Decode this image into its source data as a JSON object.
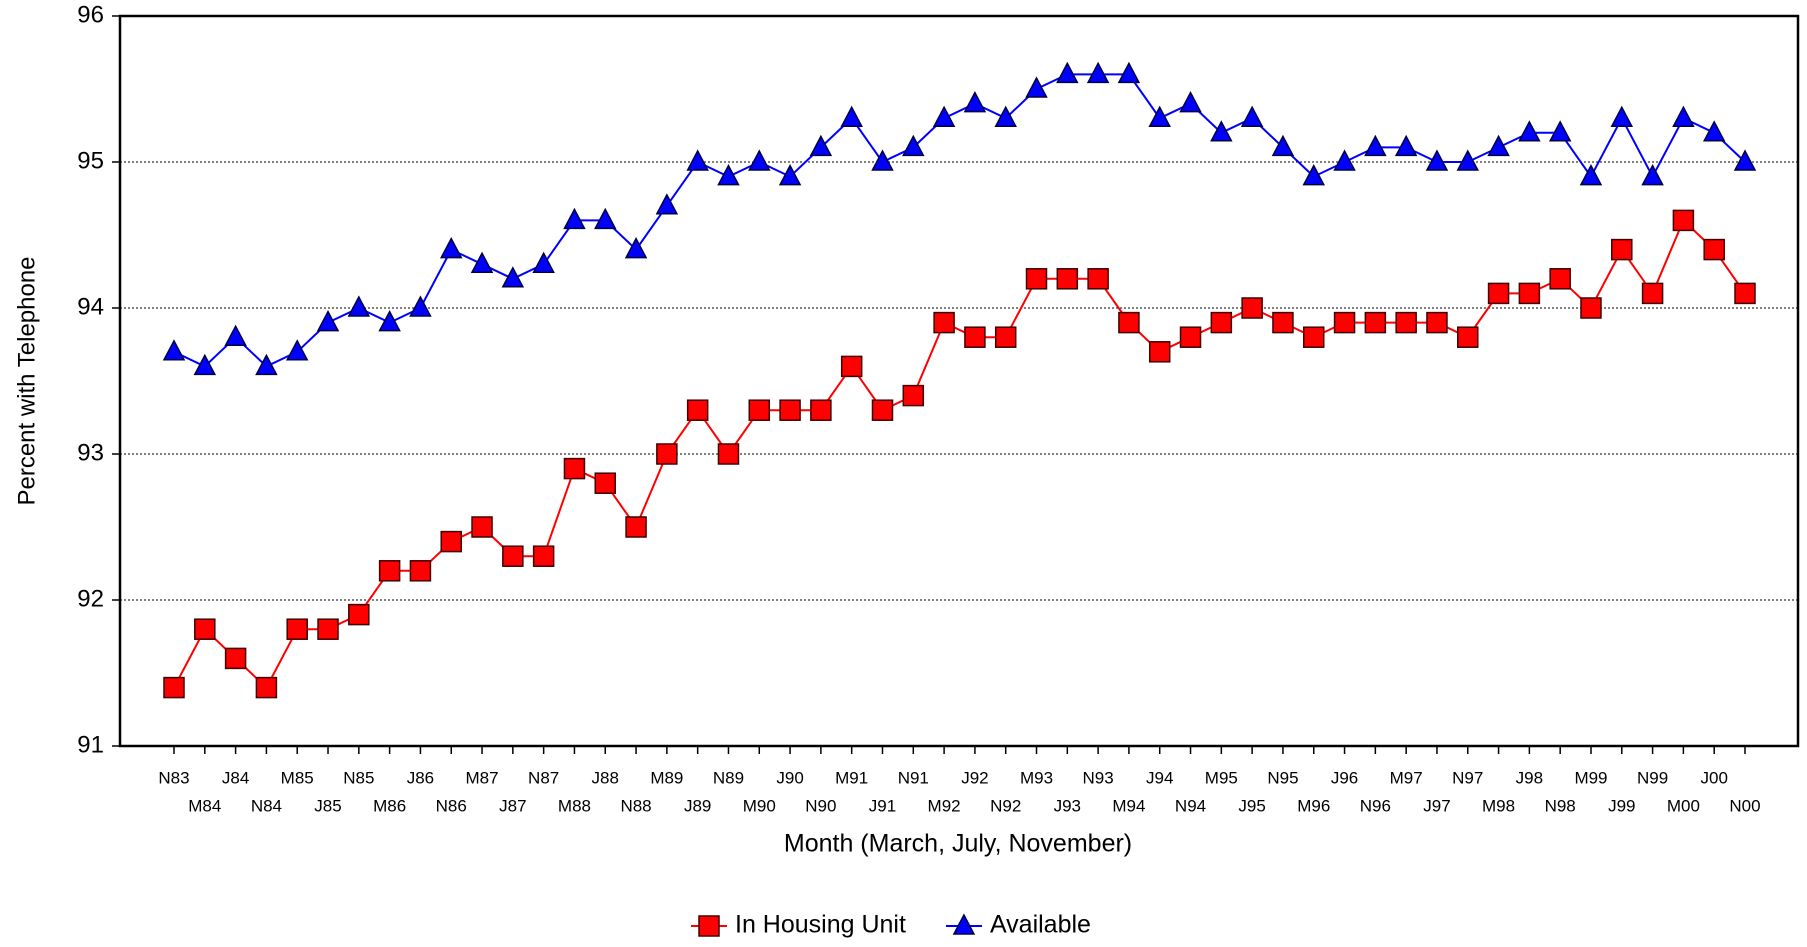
{
  "chart_data": {
    "type": "line",
    "y_label": "Percent with Telephone",
    "x_label": "Month (March, July, November)",
    "categories": [
      "N83",
      "M84",
      "J84",
      "N84",
      "M85",
      "J85",
      "N85",
      "M86",
      "J86",
      "N86",
      "M87",
      "J87",
      "N87",
      "M88",
      "J88",
      "N88",
      "M89",
      "J89",
      "N89",
      "M90",
      "J90",
      "N90",
      "M91",
      "J91",
      "N91",
      "M92",
      "J92",
      "N92",
      "M93",
      "J93",
      "N93",
      "M94",
      "J94",
      "N94",
      "M95",
      "J95",
      "N95",
      "M96",
      "J96",
      "N96",
      "M97",
      "J97",
      "N97",
      "M98",
      "J98",
      "N98",
      "M99",
      "J99",
      "N99",
      "M00",
      "J00",
      "N00"
    ],
    "series": [
      {
        "name": "In Housing Unit",
        "color": "#ff0000",
        "marker": "square",
        "values": [
          91.4,
          91.8,
          91.6,
          91.4,
          91.8,
          91.8,
          91.9,
          92.2,
          92.2,
          92.4,
          92.5,
          92.3,
          92.3,
          92.9,
          92.8,
          92.5,
          93.0,
          93.3,
          93.0,
          93.3,
          93.3,
          93.3,
          93.6,
          93.3,
          93.4,
          93.9,
          93.8,
          93.8,
          94.2,
          94.2,
          94.2,
          93.9,
          93.7,
          93.8,
          93.9,
          94.0,
          93.9,
          93.8,
          93.9,
          93.9,
          93.9,
          93.9,
          93.8,
          94.1,
          94.1,
          94.2,
          94.0,
          94.4,
          94.1,
          94.6,
          94.4,
          94.1
        ]
      },
      {
        "name": "Available",
        "color": "#0000ff",
        "marker": "triangle",
        "values": [
          93.7,
          93.6,
          93.8,
          93.6,
          93.7,
          93.9,
          94.0,
          93.9,
          94.0,
          94.4,
          94.3,
          94.2,
          94.3,
          94.6,
          94.6,
          94.4,
          94.7,
          95.0,
          94.9,
          95.0,
          94.9,
          95.1,
          95.3,
          95.0,
          95.1,
          95.3,
          95.4,
          95.3,
          95.5,
          95.6,
          95.6,
          95.6,
          95.3,
          95.4,
          95.2,
          95.3,
          95.1,
          94.9,
          95.0,
          95.1,
          95.1,
          95.0,
          95.0,
          95.1,
          95.2,
          95.2,
          94.9,
          95.3,
          94.9,
          95.3,
          95.2,
          95.0
        ]
      }
    ],
    "ylim": [
      91,
      96
    ],
    "yticks": [
      91,
      92,
      93,
      94,
      95,
      96
    ],
    "grid": true,
    "legend": "bottom"
  }
}
